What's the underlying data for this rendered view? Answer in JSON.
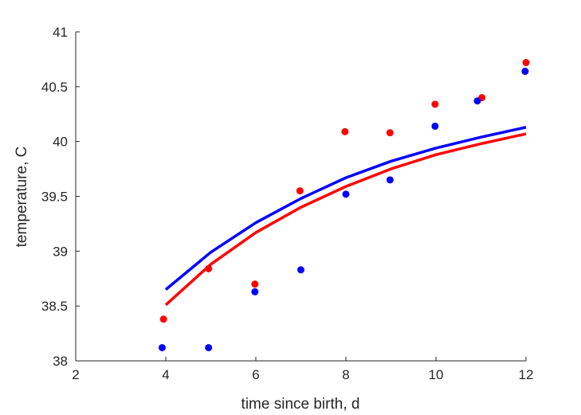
{
  "chart_data": {
    "type": "scatter",
    "title": "",
    "xlabel": "time since birth, d",
    "ylabel": "temperature, C",
    "xlim": [
      2,
      12
    ],
    "ylim": [
      38,
      41
    ],
    "xticks": [
      2,
      4,
      6,
      8,
      10,
      12
    ],
    "yticks": [
      38,
      38.5,
      39,
      39.5,
      40,
      40.5,
      41
    ],
    "grid": false,
    "legend": "none",
    "series": [
      {
        "kind": "points",
        "color": "#ff0000",
        "x": [
          3.95,
          4.95,
          5.98,
          6.98,
          7.98,
          8.98,
          9.98,
          11.02,
          12.0
        ],
        "y": [
          38.38,
          38.84,
          38.7,
          39.55,
          40.09,
          40.08,
          40.34,
          40.4,
          40.72
        ]
      },
      {
        "kind": "points",
        "color": "#0000ff",
        "x": [
          3.92,
          4.95,
          5.98,
          7.0,
          8.0,
          8.98,
          9.98,
          10.92,
          11.98
        ],
        "y": [
          38.12,
          38.12,
          38.63,
          38.83,
          39.52,
          39.65,
          40.14,
          40.37,
          40.64
        ]
      },
      {
        "kind": "line",
        "color": "#ff0000",
        "x": [
          4,
          5,
          6,
          7,
          8,
          9,
          10,
          11,
          12
        ],
        "y": [
          38.51,
          38.88,
          39.17,
          39.4,
          39.59,
          39.75,
          39.88,
          39.98,
          40.07
        ]
      },
      {
        "kind": "line",
        "color": "#0000ff",
        "x": [
          4,
          5,
          6,
          7,
          8,
          9,
          10,
          11,
          12
        ],
        "y": [
          38.65,
          38.99,
          39.26,
          39.48,
          39.67,
          39.82,
          39.94,
          40.04,
          40.13
        ]
      }
    ]
  }
}
